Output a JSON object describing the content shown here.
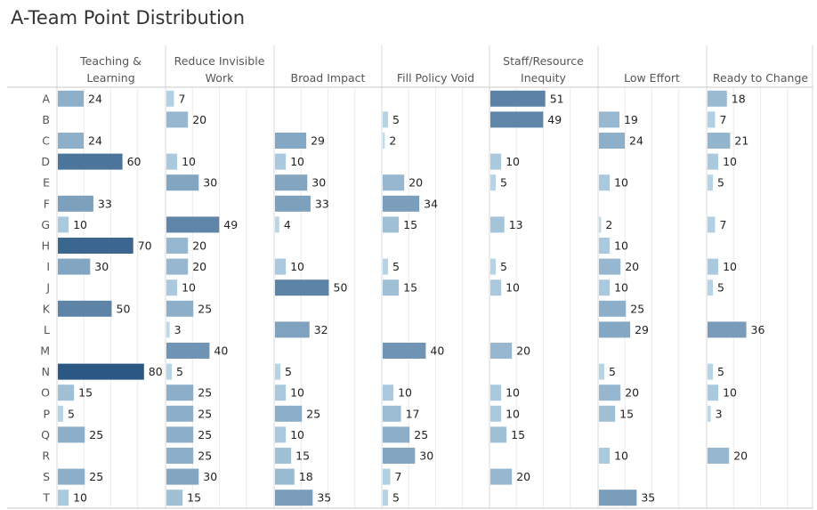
{
  "chart_data": {
    "type": "bar",
    "title": "A-Team Point Distribution",
    "orientation": "horizontal",
    "layout": "small-multiples",
    "xlim": [
      0,
      100
    ],
    "categories": [
      "A",
      "B",
      "C",
      "D",
      "E",
      "F",
      "G",
      "H",
      "I",
      "J",
      "K",
      "L",
      "M",
      "N",
      "O",
      "P",
      "Q",
      "R",
      "S",
      "T"
    ],
    "series": [
      {
        "name": "Teaching & Learning",
        "header_lines": [
          "Teaching &",
          "Learning"
        ],
        "values": [
          24,
          null,
          24,
          60,
          null,
          33,
          10,
          70,
          30,
          null,
          50,
          null,
          null,
          80,
          15,
          5,
          25,
          null,
          25,
          10
        ]
      },
      {
        "name": "Reduce Invisible Work",
        "header_lines": [
          "Reduce Invisible",
          "Work"
        ],
        "values": [
          7,
          20,
          null,
          10,
          30,
          null,
          49,
          20,
          20,
          10,
          25,
          3,
          40,
          5,
          25,
          25,
          25,
          25,
          30,
          15
        ]
      },
      {
        "name": "Broad Impact",
        "header_lines": [
          "Broad Impact"
        ],
        "values": [
          null,
          null,
          29,
          10,
          30,
          33,
          4,
          null,
          10,
          50,
          null,
          32,
          null,
          5,
          10,
          25,
          10,
          15,
          18,
          35
        ]
      },
      {
        "name": "Fill Policy Void",
        "header_lines": [
          "Fill Policy Void"
        ],
        "values": [
          null,
          5,
          2,
          null,
          20,
          34,
          15,
          null,
          5,
          15,
          null,
          null,
          40,
          null,
          10,
          17,
          25,
          30,
          7,
          5
        ]
      },
      {
        "name": "Staff/Resource Inequity",
        "header_lines": [
          "Staff/Resource",
          "Inequity"
        ],
        "values": [
          51,
          49,
          null,
          10,
          5,
          null,
          13,
          null,
          5,
          10,
          null,
          null,
          20,
          null,
          10,
          10,
          15,
          null,
          20,
          null
        ]
      },
      {
        "name": "Low Effort",
        "header_lines": [
          "Low Effort"
        ],
        "values": [
          null,
          19,
          24,
          null,
          10,
          null,
          2,
          10,
          20,
          10,
          25,
          29,
          null,
          5,
          20,
          15,
          null,
          10,
          null,
          35
        ]
      },
      {
        "name": "Ready to Change",
        "header_lines": [
          "Ready to Change"
        ],
        "values": [
          18,
          7,
          21,
          10,
          5,
          null,
          7,
          null,
          10,
          5,
          null,
          36,
          null,
          5,
          10,
          3,
          null,
          20,
          null,
          null
        ]
      }
    ],
    "color_scale": {
      "min_value": 0,
      "max_value": 80,
      "low": "#c6e1f1",
      "high": "#2a5783"
    },
    "grid": true,
    "legend": "none"
  }
}
